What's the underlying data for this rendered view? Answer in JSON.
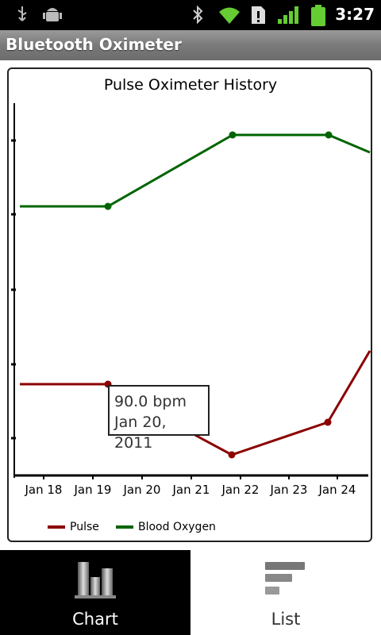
{
  "status": {
    "time": "3:27"
  },
  "app": {
    "title": "Bluetooth Oximeter"
  },
  "chart_data": {
    "type": "line",
    "title": "Pulse Oximeter History",
    "categories": [
      "Jan 18",
      "Jan 19",
      "Jan 20",
      "Jan 21",
      "Jan 22",
      "Jan 23",
      "Jan 24"
    ],
    "series": [
      {
        "name": "Pulse",
        "color": "#8b0000",
        "points": [
          [
            18,
            90
          ],
          [
            19.3,
            90
          ],
          [
            21,
            88
          ],
          [
            21.9,
            83.5
          ],
          [
            23.8,
            86
          ],
          [
            24.7,
            96
          ]
        ]
      },
      {
        "name": "Blood Oxygen",
        "color": "#006400",
        "points": [
          [
            18,
            97
          ],
          [
            19.3,
            97
          ],
          [
            21.9,
            99
          ],
          [
            23.8,
            99
          ],
          [
            24.7,
            98.5
          ]
        ]
      }
    ],
    "tooltip": {
      "value": "90.0 bpm",
      "date": "Jan 20, 2011"
    },
    "legend_position": "bottom"
  },
  "tabs": [
    {
      "label": "Chart",
      "icon": "bar-chart-icon",
      "active": true
    },
    {
      "label": "List",
      "icon": "list-icon",
      "active": false
    }
  ]
}
